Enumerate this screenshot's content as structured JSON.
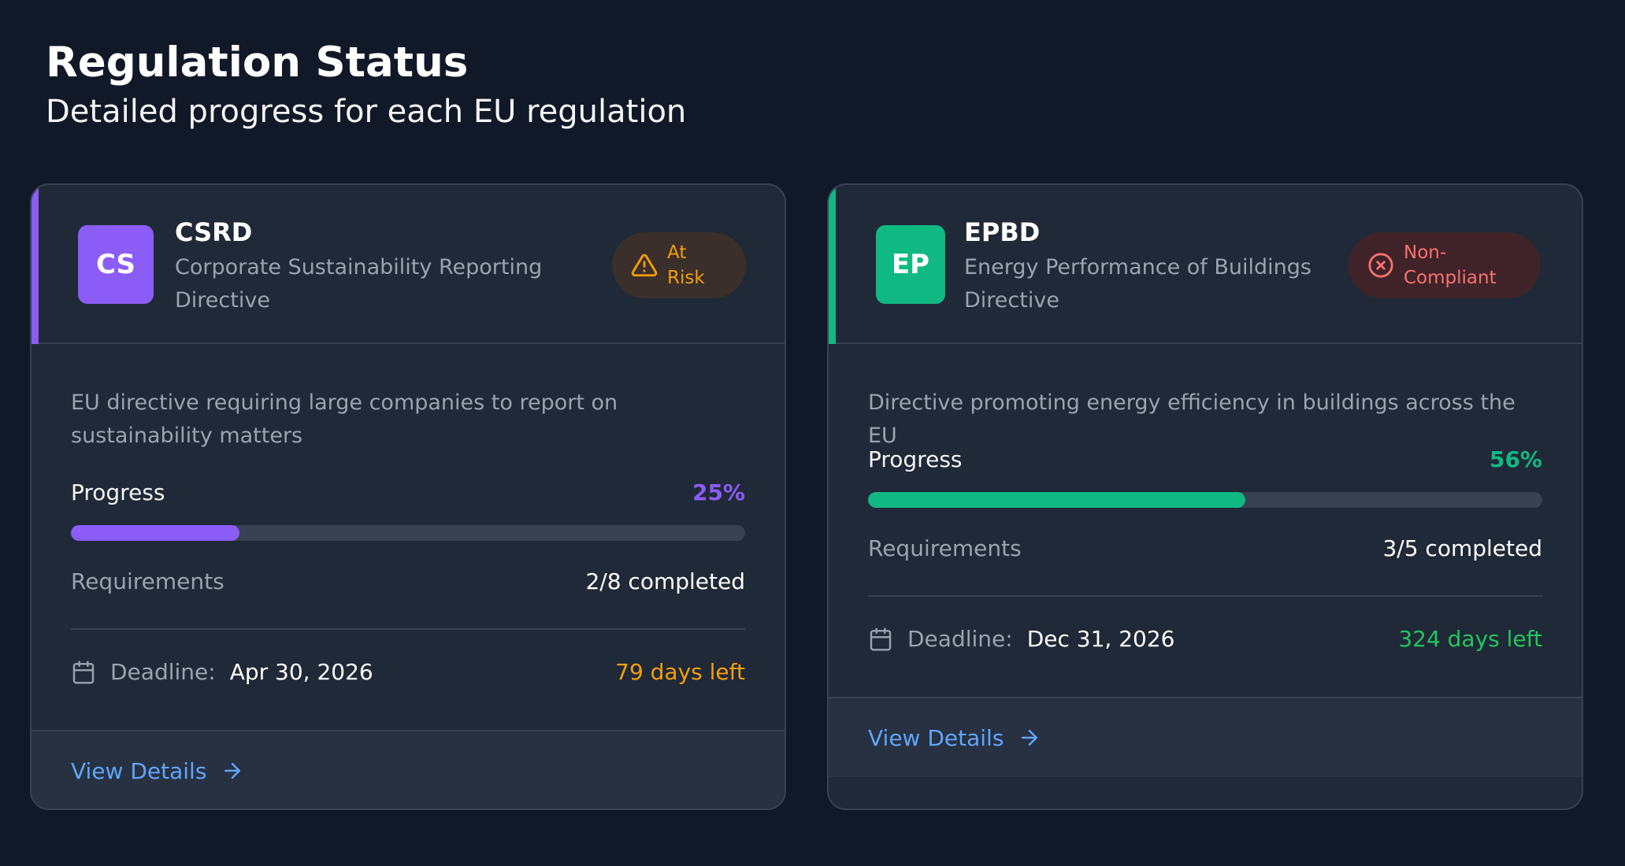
{
  "header": {
    "title": "Regulation Status",
    "subtitle": "Detailed progress for each EU regulation"
  },
  "regulations": [
    {
      "initials": "CS",
      "code": "CSRD",
      "name": "Corporate Sustainability Reporting Directive",
      "status": "At Risk",
      "status_icon": "warning-triangle-icon",
      "description": "EU directive requiring large companies to report on sustainability matters",
      "progress_label": "Progress",
      "progress_text": "25%",
      "progress_fraction": 0.25,
      "requirements_label": "Requirements",
      "requirements_value": "2/8 completed",
      "deadline_label": "Deadline:",
      "deadline_date": "Apr 30, 2026",
      "days_left": "79 days left",
      "link_label": "View Details",
      "colors": {
        "accent": "#8b5cf6",
        "days_left": "#f59e0b"
      }
    },
    {
      "initials": "EP",
      "code": "EPBD",
      "name": "Energy Performance of Buildings Directive",
      "status": "Non-Compliant",
      "status_icon": "x-circle-icon",
      "description": "Directive promoting energy efficiency in buildings across the EU",
      "progress_label": "Progress",
      "progress_text": "56%",
      "progress_fraction": 0.56,
      "requirements_label": "Requirements",
      "requirements_value": "3/5 completed",
      "deadline_label": "Deadline:",
      "deadline_date": "Dec 31, 2026",
      "days_left": "324 days left",
      "link_label": "View Details",
      "colors": {
        "accent": "#10b981",
        "days_left": "#22c55e"
      }
    }
  ]
}
